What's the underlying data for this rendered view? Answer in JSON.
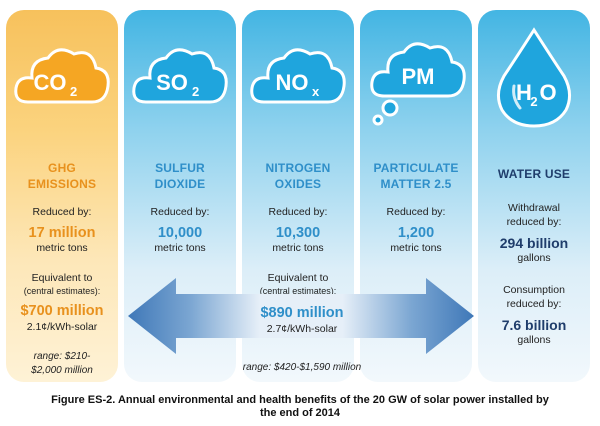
{
  "columns": {
    "ghg": {
      "icon_main": "CO",
      "icon_sub": "2",
      "title_line1": "GHG",
      "title_line2": "EMISSIONS",
      "reduced_by": "Reduced by:",
      "amount": "17 million",
      "unit": "metric tons",
      "equivalent_to": "Equivalent to",
      "central_estimates": "(central estimates):",
      "value": "$700 million",
      "rate": "2.1¢/kWh-solar",
      "range_line1": "range: $210-",
      "range_line2": "$2,000 million"
    },
    "so2": {
      "icon_main": "SO",
      "icon_sub": "2",
      "title_line1": "SULFUR",
      "title_line2": "DIOXIDE",
      "reduced_by": "Reduced by:",
      "amount": "10,000",
      "unit": "metric tons"
    },
    "nox": {
      "icon_main": "NO",
      "icon_sub": "x",
      "title_line1": "NITROGEN",
      "title_line2": "OXIDES",
      "reduced_by": "Reduced by:",
      "amount": "10,300",
      "unit": "metric tons",
      "equivalent_to": "Equivalent to",
      "central_estimates": "(central estimates):",
      "value": "$890 million",
      "rate": "2.7¢/kWh-solar",
      "range": "range: $420-$1,590 million"
    },
    "pm": {
      "icon_main": "PM",
      "title_line1": "PARTICULATE",
      "title_line2": "MATTER 2.5",
      "reduced_by": "Reduced by:",
      "amount": "1,200",
      "unit": "metric tons"
    },
    "h2o": {
      "icon_main": "H",
      "icon_sub": "2",
      "icon_tail": "O",
      "title": "WATER USE",
      "withdrawal_line1": "Withdrawal",
      "withdrawal_line2": "reduced by:",
      "withdrawal_amount": "294 billion",
      "withdrawal_unit": "gallons",
      "consumption_line1": "Consumption",
      "consumption_line2": "reduced by:",
      "consumption_amount": "7.6 billion",
      "consumption_unit": "gallons"
    }
  },
  "caption": {
    "line1": "Figure ES-2. Annual environmental and health benefits of the 20 GW of solar power installed by",
    "line2": "the end of 2014"
  },
  "colors": {
    "orange": "#e8911d",
    "blue": "#2f8fc9",
    "dark_blue": "#1f3d6b",
    "cloud_blue": "#1fa5dd"
  }
}
